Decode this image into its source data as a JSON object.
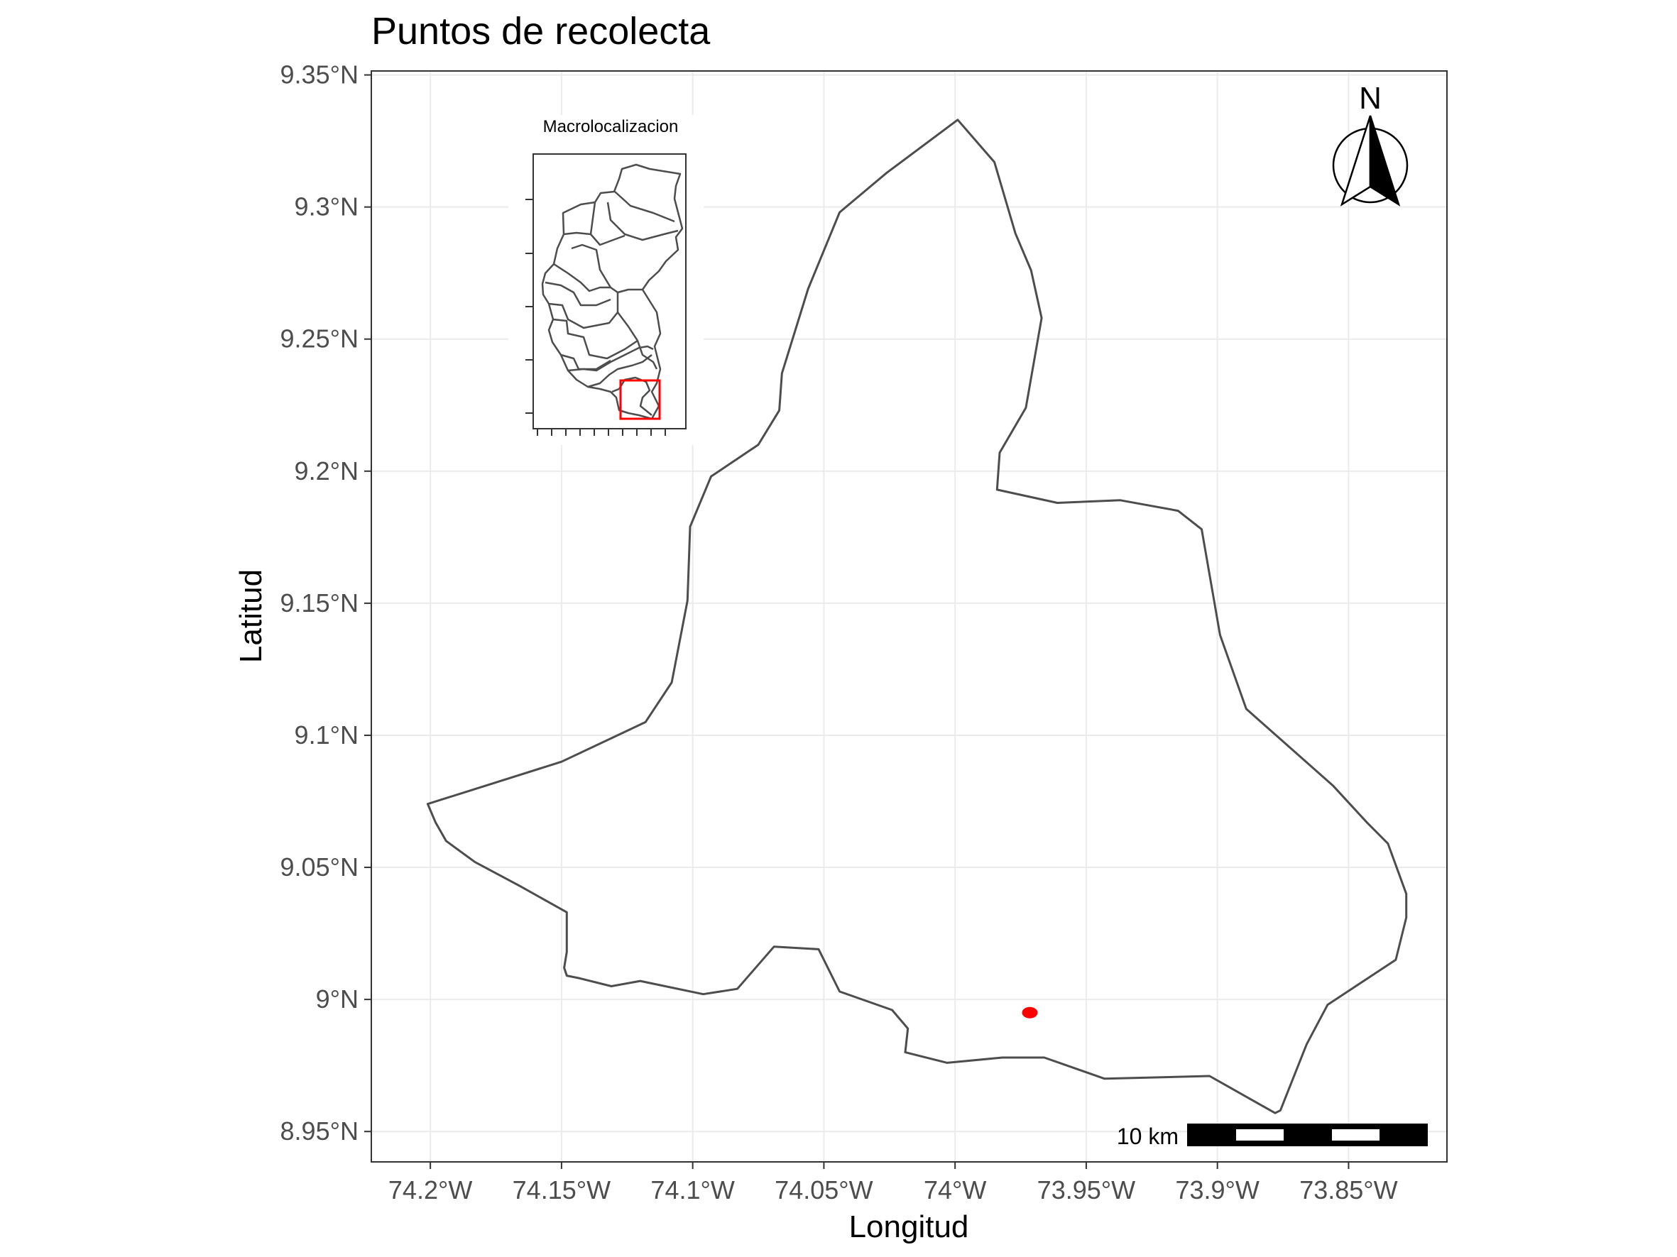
{
  "map": {
    "title": "Puntos de recolecta",
    "x_axis_title": "Longitud",
    "y_axis_title": "Latitud",
    "x_ticks": [
      {
        "value": -74.2,
        "label": "74.2°W"
      },
      {
        "value": -74.15,
        "label": "74.15°W"
      },
      {
        "value": -74.1,
        "label": "74.1°W"
      },
      {
        "value": -74.05,
        "label": "74.05°W"
      },
      {
        "value": -74.0,
        "label": "74°W"
      },
      {
        "value": -73.95,
        "label": "73.95°W"
      },
      {
        "value": -73.9,
        "label": "73.9°W"
      },
      {
        "value": -73.85,
        "label": "73.85°W"
      }
    ],
    "y_ticks": [
      {
        "value": 9.35,
        "label": "9.35°N"
      },
      {
        "value": 9.3,
        "label": "9.3°N"
      },
      {
        "value": 9.25,
        "label": "9.25°N"
      },
      {
        "value": 9.2,
        "label": "9.2°N"
      },
      {
        "value": 9.15,
        "label": "9.15°N"
      },
      {
        "value": 9.1,
        "label": "9.1°N"
      },
      {
        "value": 9.05,
        "label": "9.05°N"
      },
      {
        "value": 9.0,
        "label": "9°N"
      },
      {
        "value": 8.95,
        "label": "8.95°N"
      }
    ],
    "extent": {
      "lon": [
        -74.2225,
        -73.8125
      ],
      "lat": [
        8.9385,
        9.3515
      ]
    },
    "boundary": [
      [
        -73.999,
        9.333
      ],
      [
        -73.985,
        9.317
      ],
      [
        -73.977,
        9.29
      ],
      [
        -73.971,
        9.276
      ],
      [
        -73.967,
        9.258
      ],
      [
        -73.973,
        9.224
      ],
      [
        -73.983,
        9.207
      ],
      [
        -73.984,
        9.193
      ],
      [
        -73.961,
        9.188
      ],
      [
        -73.937,
        9.189
      ],
      [
        -73.915,
        9.185
      ],
      [
        -73.906,
        9.178
      ],
      [
        -73.899,
        9.138
      ],
      [
        -73.889,
        9.11
      ],
      [
        -73.856,
        9.081
      ],
      [
        -73.843,
        9.067
      ],
      [
        -73.835,
        9.059
      ],
      [
        -73.828,
        9.04
      ],
      [
        -73.828,
        9.031
      ],
      [
        -73.832,
        9.015
      ],
      [
        -73.858,
        8.998
      ],
      [
        -73.866,
        8.983
      ],
      [
        -73.876,
        8.958
      ],
      [
        -73.878,
        8.957
      ],
      [
        -73.903,
        8.971
      ],
      [
        -73.943,
        8.97
      ],
      [
        -73.966,
        8.978
      ],
      [
        -73.982,
        8.978
      ],
      [
        -74.003,
        8.976
      ],
      [
        -74.019,
        8.98
      ],
      [
        -74.018,
        8.989
      ],
      [
        -74.024,
        8.996
      ],
      [
        -74.044,
        9.003
      ],
      [
        -74.052,
        9.019
      ],
      [
        -74.069,
        9.02
      ],
      [
        -74.083,
        9.004
      ],
      [
        -74.096,
        9.002
      ],
      [
        -74.12,
        9.007
      ],
      [
        -74.131,
        9.005
      ],
      [
        -74.143,
        9.008
      ],
      [
        -74.148,
        9.009
      ],
      [
        -74.149,
        9.012
      ],
      [
        -74.148,
        9.018
      ],
      [
        -74.148,
        9.033
      ],
      [
        -74.166,
        9.043
      ],
      [
        -74.183,
        9.052
      ],
      [
        -74.194,
        9.06
      ],
      [
        -74.198,
        9.067
      ],
      [
        -74.201,
        9.074
      ],
      [
        -74.15,
        9.09
      ],
      [
        -74.118,
        9.105
      ],
      [
        -74.108,
        9.12
      ],
      [
        -74.102,
        9.151
      ],
      [
        -74.101,
        9.179
      ],
      [
        -74.093,
        9.198
      ],
      [
        -74.075,
        9.21
      ],
      [
        -74.067,
        9.223
      ],
      [
        -74.066,
        9.237
      ],
      [
        -74.056,
        9.269
      ],
      [
        -74.044,
        9.298
      ],
      [
        -74.026,
        9.313
      ],
      [
        -73.999,
        9.333
      ]
    ],
    "collection_points": [
      [
        -73.9715,
        8.995
      ]
    ],
    "point_color": "#ff0000",
    "boundary_color": "#4d4d4d"
  },
  "north_arrow": {
    "label": "N",
    "icon": "north-arrow-icon"
  },
  "scale_bar": {
    "label": "10 km",
    "segments": [
      "black",
      "white",
      "black",
      "white",
      "black"
    ]
  },
  "inset": {
    "title": "Macrolocalizacion",
    "highlight_color": "#ff0000"
  }
}
